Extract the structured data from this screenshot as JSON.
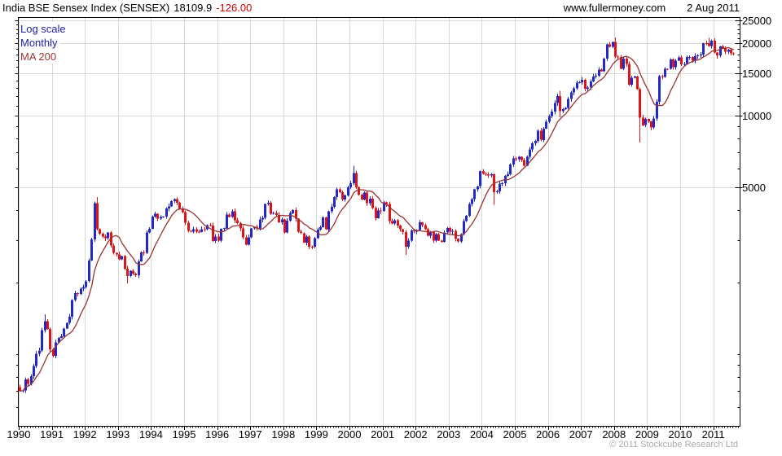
{
  "header": {
    "title": "India BSE Sensex Index (SENSEX)",
    "last_price": "18109.9",
    "change": "-126.00",
    "website": "www.fullermoney.com",
    "date": "2 Aug 2011"
  },
  "legend": {
    "scale_label": "Log scale",
    "interval_label": "Monthly",
    "ma_label": "MA 200"
  },
  "footer": {
    "copyright": "© 2011 Stockcube Research Ltd"
  },
  "colors": {
    "up": "#2328cc",
    "down": "#e01414",
    "ma": "#993333",
    "grid": "#d8d8d8",
    "axis": "#000000",
    "change_red": "#cc0000",
    "legend_blue": "#2222aa",
    "copyright_gray": "#aaaaaa"
  },
  "chart_data": {
    "type": "candlestick",
    "title": "India BSE Sensex Index (SENSEX)",
    "interval": "monthly",
    "scale": "log",
    "grid": true,
    "start": {
      "year": 1990,
      "month": 1
    },
    "x_ticks_years": [
      1990,
      1991,
      1992,
      1993,
      1994,
      1995,
      1996,
      1997,
      1998,
      1999,
      2000,
      2001,
      2002,
      2003,
      2004,
      2005,
      2006,
      2007,
      2008,
      2009,
      2010,
      2011
    ],
    "y_ticks": [
      25000,
      20000,
      15000,
      10000,
      5000
    ],
    "ylim": [
      500,
      25800
    ],
    "ma": {
      "label": "MA 200",
      "window_months": 10
    },
    "first_open": 725,
    "closes": [
      700,
      704,
      781,
      750,
      806,
      892,
      1002,
      1035,
      1260,
      1370,
      1271,
      1048,
      982,
      1120,
      1168,
      1188,
      1280,
      1350,
      1432,
      1680,
      1800,
      1788,
      1877,
      1909,
      2020,
      2467,
      3017,
      4285,
      3337,
      3197,
      3103,
      3057,
      3227,
      2848,
      2653,
      2615,
      2493,
      2571,
      2280,
      2122,
      2230,
      2174,
      2137,
      2447,
      2660,
      2651,
      3233,
      3346,
      3770,
      3870,
      3691,
      3751,
      3770,
      4077,
      4150,
      4374,
      4464,
      4296,
      4050,
      3927,
      3546,
      3284,
      3261,
      3337,
      3253,
      3248,
      3337,
      3335,
      3473,
      3459,
      2973,
      3110,
      2986,
      3342,
      3367,
      3847,
      3751,
      3967,
      3632,
      3530,
      3357,
      3081,
      2876,
      3085,
      3360,
      3412,
      3361,
      3666,
      3716,
      4256,
      4305,
      3876,
      3902,
      3832,
      3560,
      3659,
      3224,
      3622,
      3893,
      4007,
      3686,
      3250,
      3211,
      2934,
      3102,
      2812,
      2810,
      3055,
      3315,
      3399,
      3740,
      3326,
      3963,
      4141,
      4542,
      4898,
      4764,
      4444,
      4622,
      5005,
      5205,
      5740,
      5001,
      4657,
      4434,
      4749,
      4280,
      4477,
      4090,
      3711,
      3997,
      3972,
      4326,
      4247,
      3604,
      3520,
      3632,
      3456,
      3329,
      3245,
      2812,
      2989,
      3288,
      3262,
      3311,
      3562,
      3469,
      3338,
      3126,
      3245,
      2987,
      3181,
      2991,
      2949,
      3229,
      3377,
      3250,
      3283,
      3049,
      2960,
      3180,
      3607,
      3793,
      4245,
      4453,
      4907,
      5044,
      5839,
      5696,
      5668,
      5591,
      5655,
      4760,
      4795,
      5170,
      5192,
      5584,
      5672,
      6234,
      6603,
      6556,
      6714,
      6493,
      6154,
      6715,
      7194,
      7635,
      7805,
      8634,
      7892,
      8789,
      9398,
      9920,
      10370,
      11280,
      12043,
      10399,
      10609,
      10744,
      11699,
      12454,
      12962,
      13696,
      13787,
      14091,
      12938,
      13072,
      13872,
      14544,
      14651,
      15551,
      15319,
      17291,
      19838,
      19363,
      20287,
      17649,
      17579,
      15644,
      17287,
      16416,
      13462,
      14356,
      14565,
      12860,
      9788,
      9093,
      9647,
      9424,
      8892,
      9709,
      11403,
      14625,
      14494,
      15670,
      15667,
      17127,
      15896,
      16926,
      17465,
      16358,
      16430,
      17528,
      17559,
      16945,
      17701,
      17868,
      17971,
      20069,
      20032,
      19521,
      20509,
      18328,
      17823,
      19445,
      19136,
      18503,
      18846,
      18197,
      18110
    ],
    "wick_overrides": {
      "9": {
        "high": 1467
      },
      "28": {
        "high": 4546
      },
      "39": {
        "low": 1980
      },
      "121": {
        "high": 6150
      },
      "140": {
        "low": 2600
      },
      "172": {
        "low": 4227
      },
      "196": {
        "high": 12671,
        "low": 9826
      },
      "216": {
        "high": 21206
      },
      "225": {
        "low": 7697
      },
      "250": {
        "high": 21109
      },
      "253": {
        "low": 17296
      }
    }
  }
}
